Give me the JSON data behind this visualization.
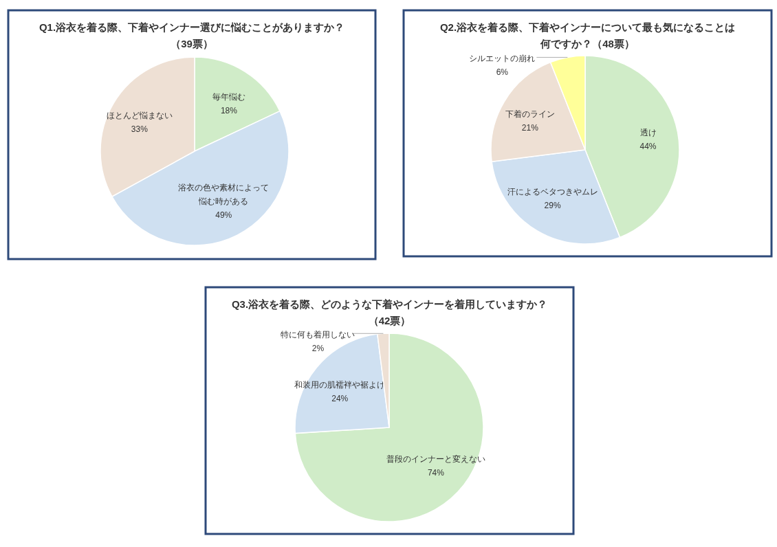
{
  "chart_data": [
    {
      "type": "pie",
      "title": "Q1.浴衣を着る際、下着やインナー選びに悩むことがありますか？",
      "subtitle": "（39票）",
      "categories": [
        "毎年悩む",
        "浴衣の色や素材によって悩む時がある",
        "ほとんど悩まない"
      ],
      "values": [
        18,
        49,
        33
      ],
      "colors": [
        "#d0ecc8",
        "#cfe0f1",
        "#eee0d4"
      ],
      "value_labels": [
        "18%",
        "49%",
        "33%"
      ]
    },
    {
      "type": "pie",
      "title": "Q2.浴衣を着る際、下着やインナーについて最も気になることは何ですか？（48票）",
      "categories": [
        "透け",
        "汗によるベタつきやムレ",
        "下着のライン",
        "シルエットの崩れ"
      ],
      "values": [
        44,
        29,
        21,
        6
      ],
      "colors": [
        "#d0ecc8",
        "#cfe0f1",
        "#eee0d4",
        "#ffff99"
      ],
      "value_labels": [
        "44%",
        "29%",
        "21%",
        "6%"
      ]
    },
    {
      "type": "pie",
      "title": "Q3.浴衣を着る際、どのような下着やインナーを着用していますか？",
      "subtitle": "（42票）",
      "categories": [
        "普段のインナーと変えない",
        "和装用の肌襦袢や裾よけ",
        "特に何も着用しない"
      ],
      "values": [
        74,
        24,
        2
      ],
      "colors": [
        "#d0ecc8",
        "#cfe0f1",
        "#eee0d4"
      ],
      "value_labels": [
        "74%",
        "24%",
        "2%"
      ]
    }
  ]
}
